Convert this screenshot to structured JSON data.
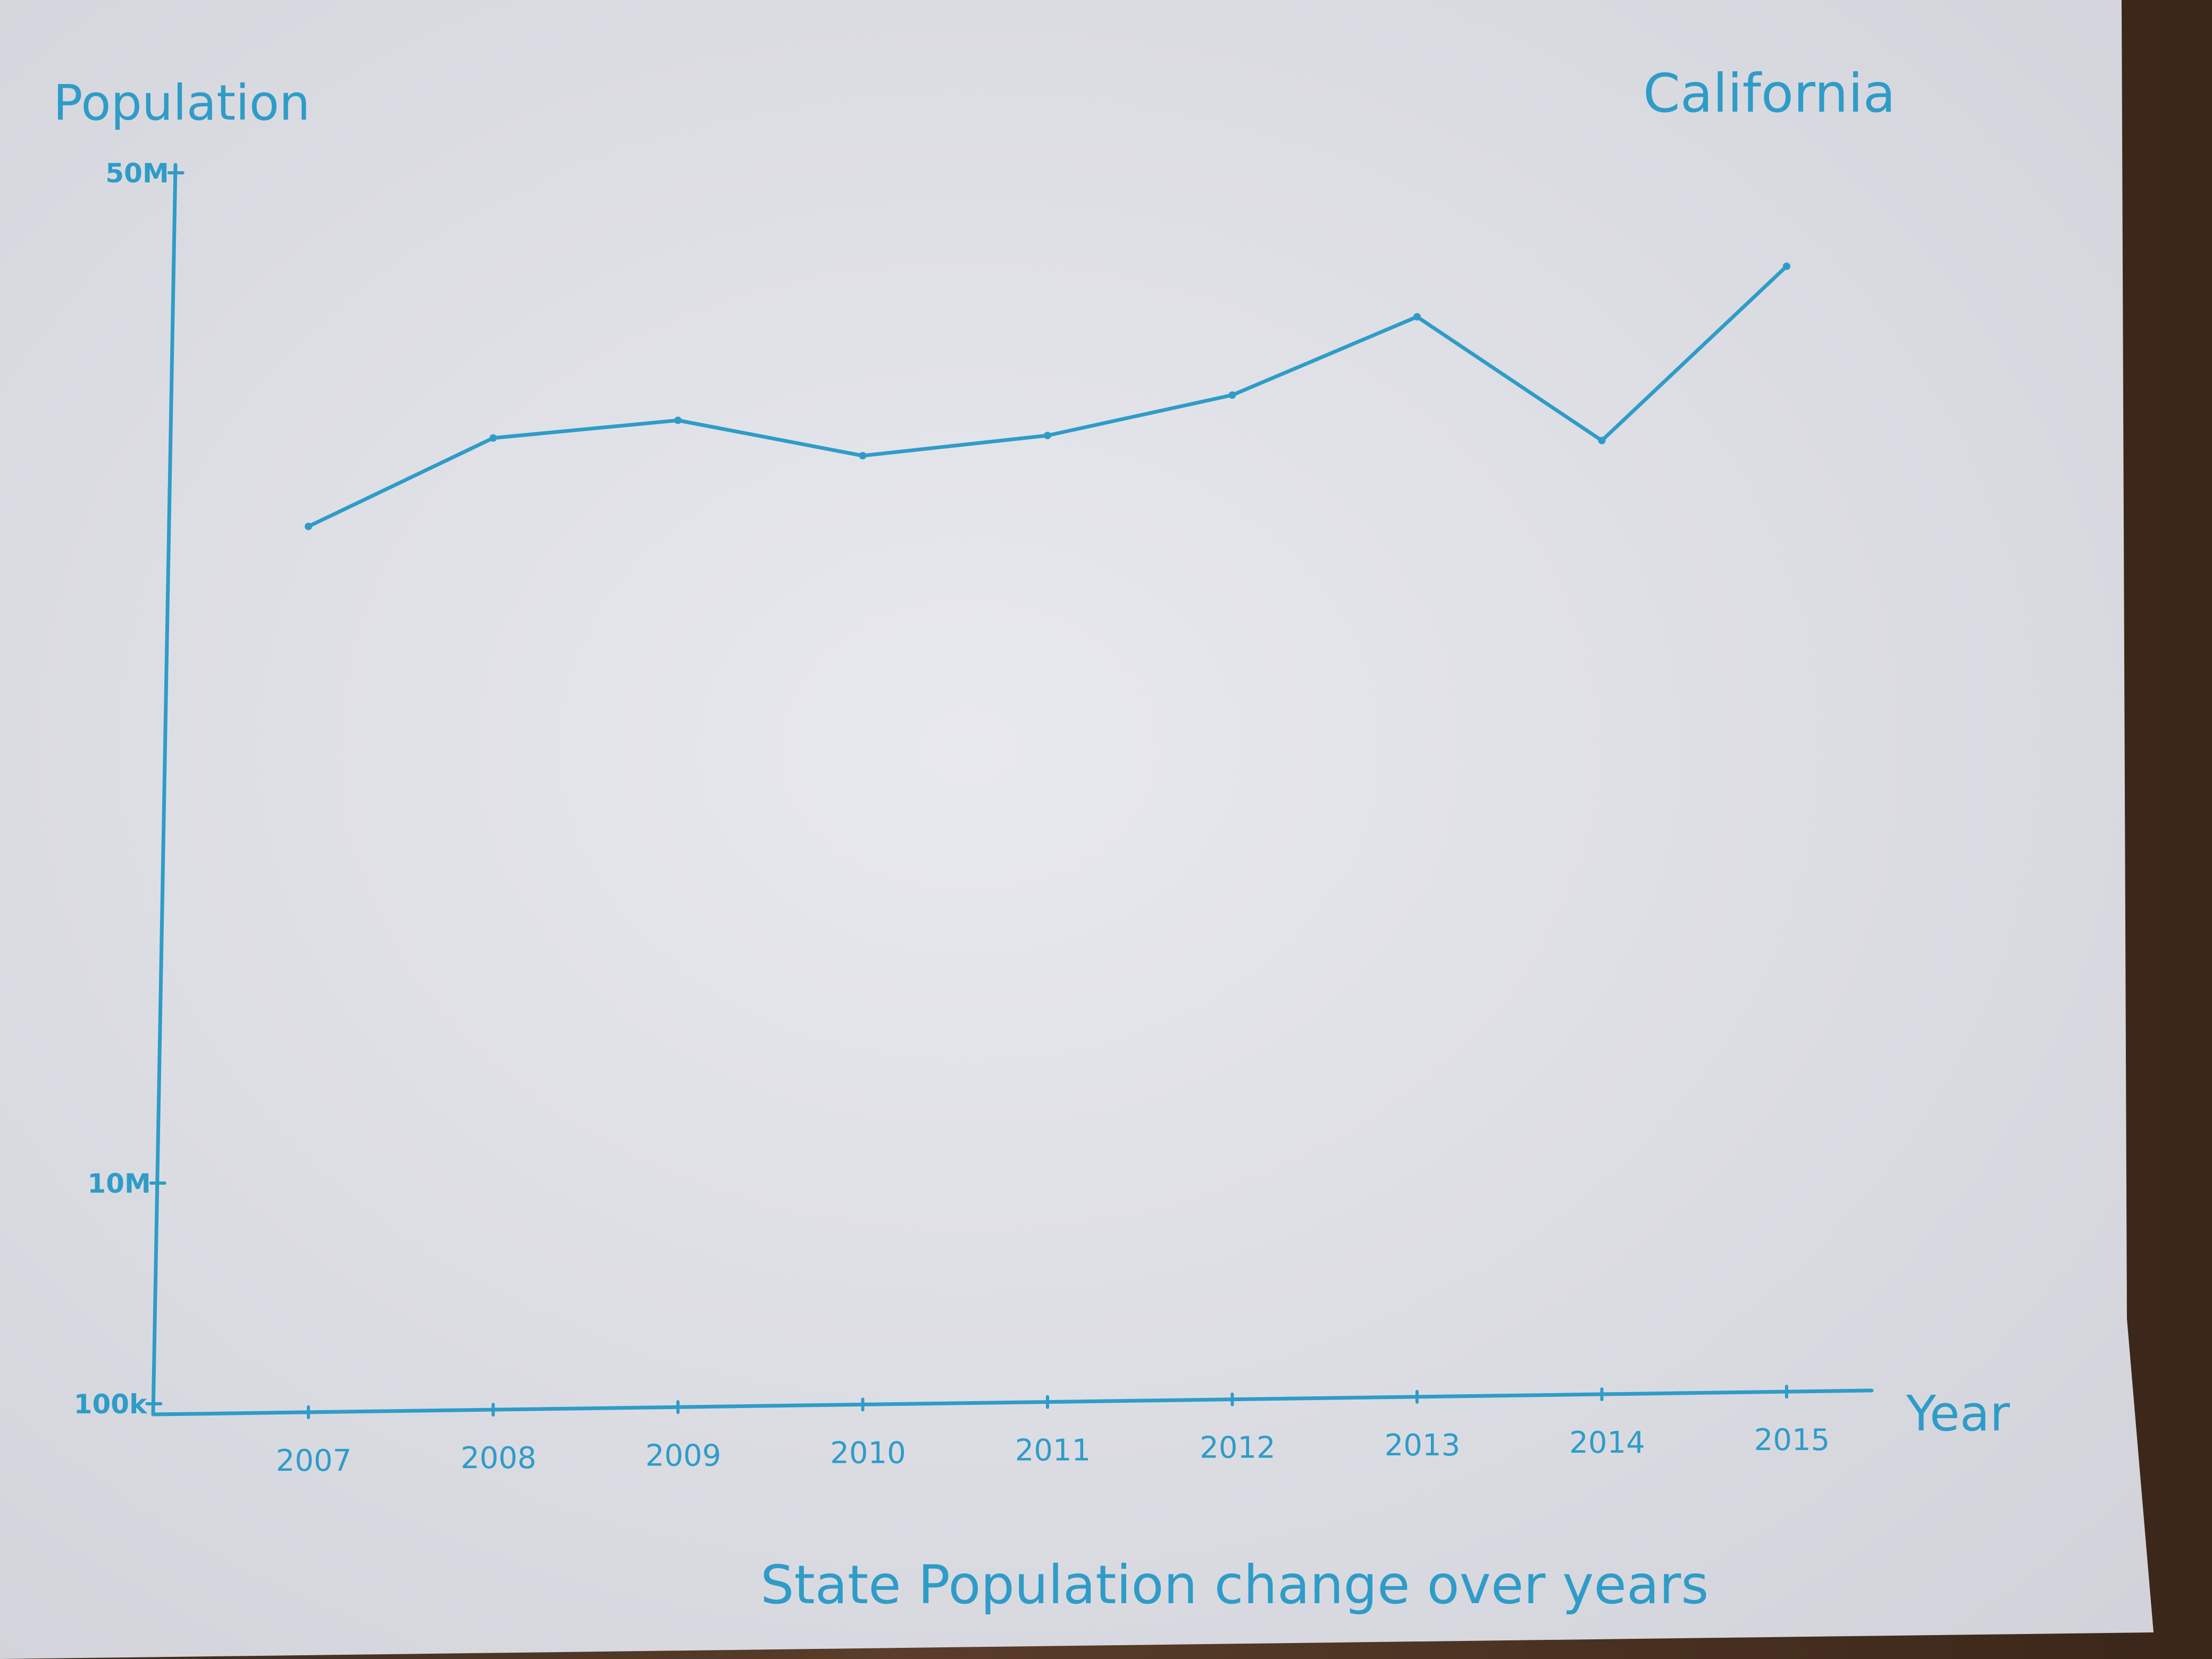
{
  "chart_data": {
    "type": "line",
    "title": "State Population change over years",
    "subtitle": "California",
    "xlabel": "Year",
    "ylabel": "Population",
    "x": [
      2007,
      2008,
      2009,
      2010,
      2011,
      2012,
      2013,
      2014,
      2015
    ],
    "x_tick_labels": [
      "2007",
      "2008",
      "2009",
      "2010",
      "2011",
      "2012",
      "2013",
      "2014",
      "2015"
    ],
    "y_tick_labels": [
      "50M",
      "10M",
      "100k"
    ],
    "series": [
      {
        "values": [
          36000000,
          39500000,
          40200000,
          38800000,
          39600000,
          41200000,
          44300000,
          39400000,
          46300000
        ]
      }
    ],
    "grid": false,
    "legend": "none",
    "ink_color": "#2f9cc8",
    "paper_color": "#e4e5ea"
  }
}
